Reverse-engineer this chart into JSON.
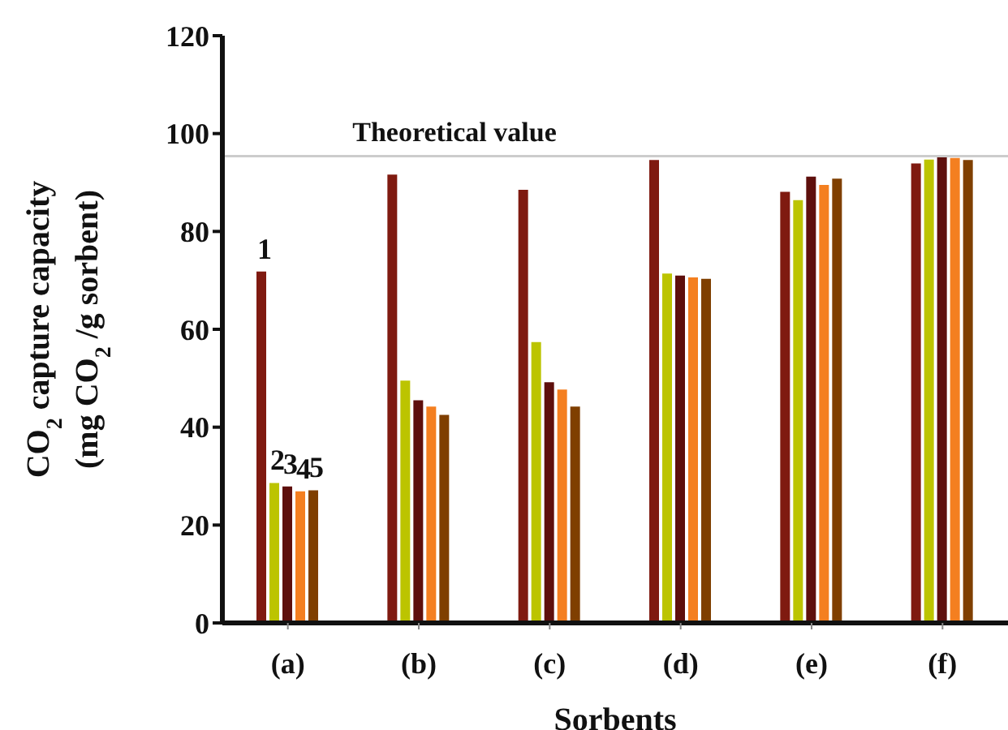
{
  "chart_data": {
    "type": "bar",
    "xlabel": "Sorbents",
    "ylabel": "CO$_{2}$ capture capacity\n(mg CO$_{2}$ /g sorbent)",
    "categories": [
      "(a)",
      "(b)",
      "(c)",
      "(d)",
      "(e)",
      "(f)"
    ],
    "series": [
      {
        "name": "1",
        "color": "#7f1a10",
        "values": [
          71.8,
          91.6,
          88.5,
          94.6,
          88.1,
          93.9
        ]
      },
      {
        "name": "2",
        "color": "#bcc400",
        "values": [
          28.6,
          49.5,
          57.4,
          71.4,
          86.4,
          94.7
        ]
      },
      {
        "name": "3",
        "color": "#5e0f0c",
        "values": [
          27.9,
          45.5,
          49.2,
          71.0,
          91.2,
          95.3
        ]
      },
      {
        "name": "4",
        "color": "#f47f20",
        "values": [
          26.9,
          44.2,
          47.7,
          70.6,
          89.5,
          95.0
        ]
      },
      {
        "name": "5",
        "color": "#7f3f00",
        "values": [
          27.1,
          42.5,
          44.2,
          70.3,
          90.8,
          94.6
        ]
      }
    ],
    "ylim": [
      0,
      120
    ],
    "yticks": [
      0,
      20,
      40,
      60,
      80,
      100,
      120
    ],
    "grid": false,
    "legend": false,
    "ref_lines": [
      {
        "axis": "y",
        "value": 95.4,
        "label": "Theoretical value",
        "color": "#cccccc"
      }
    ]
  }
}
